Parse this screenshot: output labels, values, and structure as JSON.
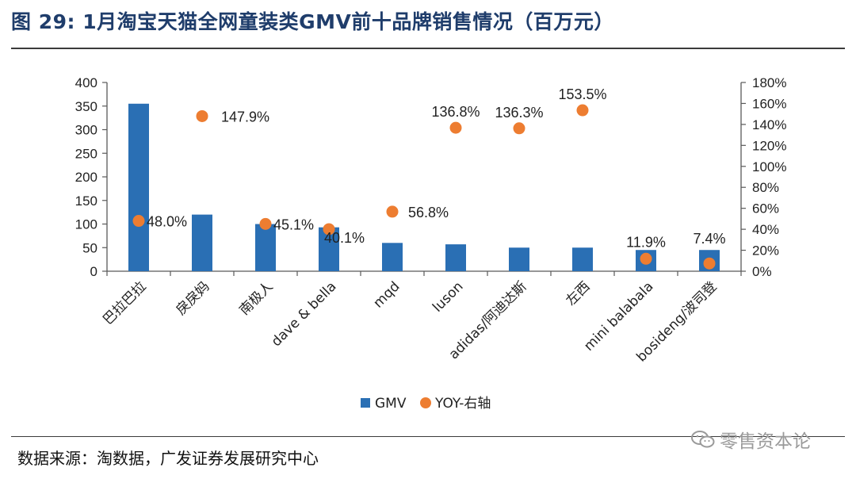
{
  "figure": {
    "title": "图 29: 1月淘宝天猫全网童装类GMV前十品牌销售情况（百万元）",
    "source": "数据来源：淘数据，广发证券发展研究中心",
    "watermark": "零售资本论"
  },
  "colors": {
    "bar": "#2a6fb4",
    "dot": "#ed7d31",
    "axis": "#595959",
    "text": "#222222"
  },
  "chart_data": {
    "type": "bar",
    "title": "1月淘宝天猫全网童装类GMV前十品牌销售情况（百万元）",
    "categories": [
      "巴拉巴拉",
      "戾戾妈",
      "南极人",
      "dave & bella",
      "mqd",
      "luson",
      "adidas/阿迪达斯",
      "左西",
      "mini balabala",
      "bosideng/波司登"
    ],
    "series": [
      {
        "name": "GMV",
        "type": "bar",
        "axis": "left",
        "values": [
          355,
          120,
          100,
          93,
          60,
          57,
          50,
          50,
          45,
          45
        ]
      },
      {
        "name": "YOY-右轴",
        "type": "scatter",
        "axis": "right",
        "values": [
          48.0,
          147.9,
          45.1,
          40.1,
          56.8,
          136.8,
          136.3,
          153.5,
          11.9,
          7.4
        ],
        "labels": [
          "48.0%",
          "147.9%",
          "45.1%",
          "40.1%",
          "56.8%",
          "136.8%",
          "136.3%",
          "153.5%",
          "11.9%",
          "7.4%"
        ]
      }
    ],
    "left_axis": {
      "ylim": [
        0,
        400
      ],
      "ticks": [
        "0",
        "50",
        "100",
        "150",
        "200",
        "250",
        "300",
        "350",
        "400"
      ]
    },
    "right_axis": {
      "ylim": [
        0,
        180
      ],
      "ticks": [
        "0%",
        "20%",
        "40%",
        "60%",
        "80%",
        "100%",
        "120%",
        "140%",
        "160%",
        "180%"
      ]
    },
    "legend": {
      "position": "bottom",
      "items": [
        "GMV",
        "YOY-右轴"
      ]
    },
    "grid": false
  }
}
